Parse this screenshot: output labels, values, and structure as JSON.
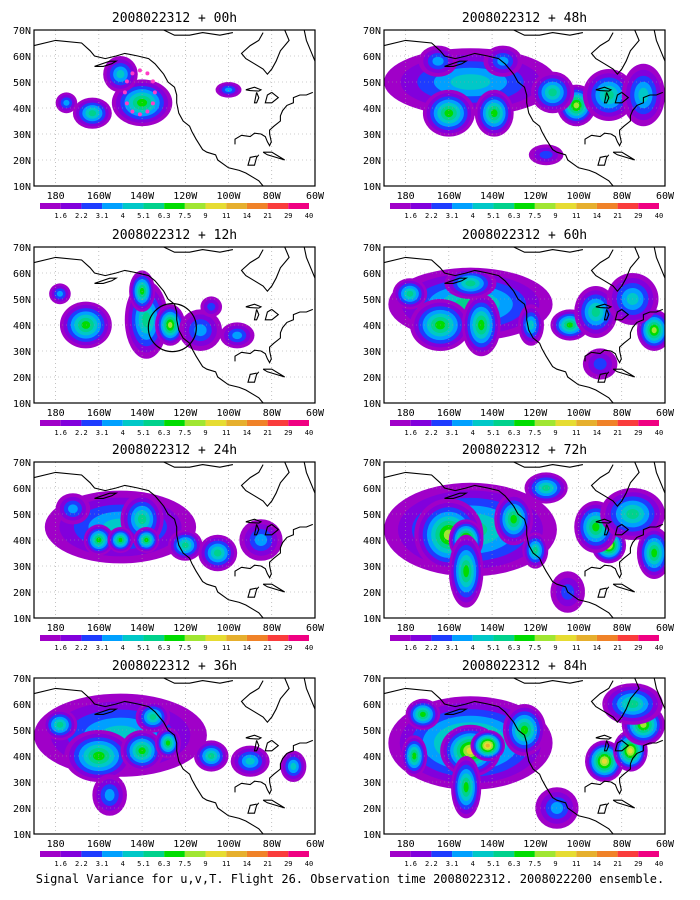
{
  "panels": [
    {
      "title": "2008022312 + 00h",
      "blobs": [
        [
          140,
          42,
          14,
          9,
          6
        ],
        [
          163,
          38,
          9,
          6,
          5
        ],
        [
          150,
          53,
          8,
          7,
          4
        ],
        [
          100,
          47,
          6,
          3,
          3
        ],
        [
          175,
          42,
          5,
          4,
          3
        ]
      ],
      "markers": {
        "type": "dots",
        "lon": 141,
        "lat": 46
      }
    },
    {
      "title": "2008022312 + 48h",
      "blobs": [
        [
          150,
          50,
          40,
          13,
          4
        ],
        [
          160,
          38,
          12,
          9,
          6
        ],
        [
          139,
          38,
          9,
          9,
          6
        ],
        [
          101,
          41,
          9,
          8,
          7
        ],
        [
          112,
          46,
          10,
          8,
          5
        ],
        [
          86,
          45,
          12,
          10,
          5
        ],
        [
          70,
          45,
          10,
          12,
          4
        ],
        [
          165,
          58,
          9,
          6,
          3
        ],
        [
          135,
          58,
          9,
          6,
          3
        ],
        [
          115,
          22,
          8,
          4,
          2
        ]
      ]
    },
    {
      "title": "2008022312 + 12h",
      "blobs": [
        [
          166,
          40,
          12,
          9,
          6
        ],
        [
          138,
          42,
          10,
          15,
          5
        ],
        [
          127,
          40,
          7,
          8,
          7
        ],
        [
          140,
          53,
          6,
          8,
          6
        ],
        [
          113,
          38,
          10,
          8,
          3
        ],
        [
          96,
          36,
          8,
          5,
          3
        ],
        [
          178,
          52,
          5,
          4,
          3
        ],
        [
          108,
          47,
          5,
          4,
          2
        ]
      ],
      "markers": {
        "type": "circle",
        "lon": 126,
        "lat": 39
      }
    },
    {
      "title": "2008022312 + 60h",
      "blobs": [
        [
          150,
          48,
          38,
          14,
          5
        ],
        [
          164,
          40,
          14,
          10,
          6
        ],
        [
          145,
          40,
          9,
          12,
          6
        ],
        [
          150,
          56,
          12,
          6,
          5
        ],
        [
          178,
          52,
          8,
          6,
          5
        ],
        [
          104,
          40,
          9,
          6,
          6
        ],
        [
          92,
          45,
          10,
          10,
          5
        ],
        [
          65,
          38,
          8,
          8,
          7
        ],
        [
          75,
          50,
          12,
          10,
          4
        ],
        [
          122,
          40,
          6,
          8,
          4
        ],
        [
          90,
          25,
          8,
          6,
          2
        ]
      ]
    },
    {
      "title": "2008022312 + 24h",
      "blobs": [
        [
          150,
          45,
          35,
          14,
          4
        ],
        [
          140,
          48,
          10,
          10,
          5
        ],
        [
          160,
          40,
          7,
          6,
          6
        ],
        [
          150,
          40,
          6,
          5,
          6
        ],
        [
          138,
          40,
          6,
          5,
          6
        ],
        [
          120,
          38,
          8,
          6,
          5
        ],
        [
          105,
          35,
          9,
          7,
          5
        ],
        [
          85,
          40,
          10,
          8,
          3
        ],
        [
          172,
          52,
          8,
          6,
          3
        ]
      ]
    },
    {
      "title": "2008022312 + 72h",
      "blobs": [
        [
          150,
          44,
          40,
          18,
          5
        ],
        [
          160,
          42,
          16,
          14,
          7
        ],
        [
          152,
          40,
          8,
          8,
          8
        ],
        [
          152,
          28,
          8,
          14,
          6
        ],
        [
          130,
          48,
          9,
          10,
          6
        ],
        [
          120,
          36,
          6,
          7,
          5
        ],
        [
          86,
          38,
          8,
          7,
          8
        ],
        [
          92,
          45,
          10,
          10,
          6
        ],
        [
          75,
          50,
          15,
          10,
          5
        ],
        [
          65,
          35,
          8,
          10,
          6
        ],
        [
          115,
          60,
          10,
          6,
          5
        ],
        [
          105,
          20,
          8,
          8,
          2
        ]
      ]
    },
    {
      "title": "2008022312 + 36h",
      "blobs": [
        [
          150,
          48,
          40,
          16,
          4
        ],
        [
          160,
          40,
          16,
          10,
          6
        ],
        [
          140,
          42,
          10,
          8,
          6
        ],
        [
          128,
          45,
          6,
          6,
          6
        ],
        [
          135,
          55,
          8,
          6,
          5
        ],
        [
          108,
          40,
          8,
          6,
          5
        ],
        [
          90,
          38,
          9,
          6,
          4
        ],
        [
          70,
          36,
          6,
          6,
          4
        ],
        [
          178,
          52,
          8,
          6,
          5
        ],
        [
          155,
          25,
          8,
          8,
          3
        ]
      ]
    },
    {
      "title": "2008022312 + 84h",
      "blobs": [
        [
          150,
          45,
          38,
          18,
          6
        ],
        [
          150,
          42,
          14,
          10,
          8
        ],
        [
          142,
          44,
          8,
          6,
          9
        ],
        [
          152,
          28,
          7,
          12,
          6
        ],
        [
          125,
          50,
          10,
          10,
          6
        ],
        [
          176,
          40,
          6,
          8,
          6
        ],
        [
          88,
          38,
          9,
          8,
          8
        ],
        [
          76,
          42,
          8,
          8,
          8
        ],
        [
          70,
          52,
          10,
          8,
          7
        ],
        [
          75,
          60,
          14,
          8,
          5
        ],
        [
          110,
          20,
          10,
          8,
          3
        ],
        [
          172,
          56,
          8,
          6,
          6
        ]
      ]
    }
  ],
  "axes": {
    "x_ticks": [
      "180",
      "160W",
      "140W",
      "120W",
      "100W",
      "80W",
      "60W"
    ],
    "y_ticks": [
      "70N",
      "60N",
      "50N",
      "40N",
      "30N",
      "20N",
      "10N"
    ]
  },
  "colorbar": {
    "labels": [
      "1.6",
      "2.2",
      "3.1",
      "4",
      "5.1",
      "6.3",
      "7.5",
      "9",
      "11",
      "14",
      "21",
      "29",
      "40"
    ],
    "colors": [
      "#a000c8",
      "#8200dc",
      "#1e3cff",
      "#00a0ff",
      "#00c8c8",
      "#00d28c",
      "#00dc00",
      "#a0e632",
      "#e6dc32",
      "#e6af2d",
      "#f08228",
      "#fa3c3c",
      "#f00082"
    ]
  },
  "caption": "Signal Variance for u,v,T. Flight 26. Observation time 2008022312. 2008022200 ensemble."
}
